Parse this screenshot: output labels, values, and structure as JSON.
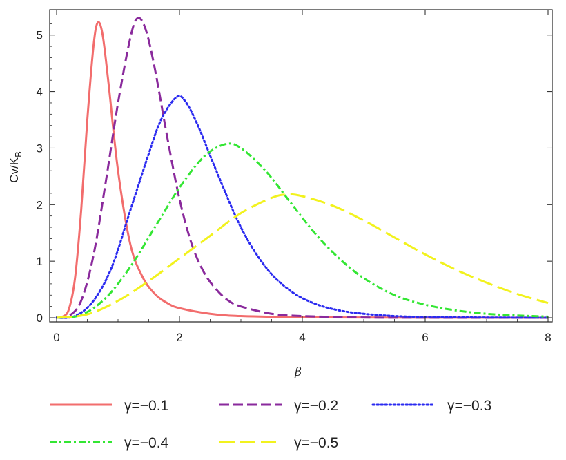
{
  "chart_data": {
    "type": "line",
    "xlabel": "β",
    "ylabel_main": "Cv/K",
    "ylabel_sub": "B",
    "xlim": [
      0,
      8
    ],
    "ylim": [
      0,
      5.4
    ],
    "x_ticks": [
      0,
      2,
      4,
      6,
      8
    ],
    "y_ticks": [
      0,
      1,
      2,
      3,
      4,
      5
    ],
    "grid": false,
    "legend_position": "bottom",
    "series": [
      {
        "name": "γ=−0.1",
        "color": "#f26d6d",
        "dash": "solid",
        "points": [
          [
            0,
            0
          ],
          [
            0.1,
            0.02
          ],
          [
            0.2,
            0.15
          ],
          [
            0.3,
            0.7
          ],
          [
            0.4,
            1.9
          ],
          [
            0.5,
            3.5
          ],
          [
            0.6,
            4.8
          ],
          [
            0.67,
            5.22
          ],
          [
            0.75,
            5.0
          ],
          [
            0.85,
            4.1
          ],
          [
            1.0,
            2.6
          ],
          [
            1.2,
            1.3
          ],
          [
            1.4,
            0.72
          ],
          [
            1.6,
            0.42
          ],
          [
            1.8,
            0.26
          ],
          [
            2.0,
            0.17
          ],
          [
            2.5,
            0.07
          ],
          [
            3.0,
            0.03
          ],
          [
            4.0,
            0.01
          ],
          [
            5.0,
            0.004
          ],
          [
            6.0,
            0.002
          ],
          [
            8.0,
            0
          ]
        ]
      },
      {
        "name": "γ=−0.2",
        "color": "#8a2a9c",
        "dash": "long",
        "points": [
          [
            0,
            0
          ],
          [
            0.2,
            0.03
          ],
          [
            0.4,
            0.3
          ],
          [
            0.6,
            1.1
          ],
          [
            0.8,
            2.4
          ],
          [
            1.0,
            3.8
          ],
          [
            1.2,
            4.95
          ],
          [
            1.32,
            5.3
          ],
          [
            1.45,
            5.1
          ],
          [
            1.6,
            4.4
          ],
          [
            1.8,
            3.2
          ],
          [
            2.0,
            2.1
          ],
          [
            2.2,
            1.3
          ],
          [
            2.4,
            0.8
          ],
          [
            2.6,
            0.5
          ],
          [
            2.8,
            0.3
          ],
          [
            3.0,
            0.2
          ],
          [
            3.5,
            0.07
          ],
          [
            4.0,
            0.03
          ],
          [
            5.0,
            0.005
          ],
          [
            6.0,
            0.001
          ],
          [
            8.0,
            0
          ]
        ]
      },
      {
        "name": "γ=−0.3",
        "color": "#2a2af0",
        "dash": "dotted",
        "points": [
          [
            0,
            0
          ],
          [
            0.3,
            0.03
          ],
          [
            0.6,
            0.3
          ],
          [
            0.9,
            0.9
          ],
          [
            1.2,
            1.9
          ],
          [
            1.5,
            2.9
          ],
          [
            1.7,
            3.5
          ],
          [
            1.95,
            3.9
          ],
          [
            2.1,
            3.82
          ],
          [
            2.3,
            3.4
          ],
          [
            2.6,
            2.6
          ],
          [
            3.0,
            1.6
          ],
          [
            3.4,
            0.9
          ],
          [
            3.8,
            0.48
          ],
          [
            4.2,
            0.25
          ],
          [
            4.6,
            0.13
          ],
          [
            5.0,
            0.07
          ],
          [
            5.5,
            0.03
          ],
          [
            6.0,
            0.015
          ],
          [
            7.0,
            0.004
          ],
          [
            8.0,
            0.001
          ]
        ]
      },
      {
        "name": "γ=−0.4",
        "color": "#33e633",
        "dash": "dashdot",
        "points": [
          [
            0,
            0
          ],
          [
            0.4,
            0.05
          ],
          [
            0.8,
            0.35
          ],
          [
            1.2,
            0.9
          ],
          [
            1.6,
            1.6
          ],
          [
            2.0,
            2.3
          ],
          [
            2.4,
            2.85
          ],
          [
            2.75,
            3.07
          ],
          [
            3.0,
            3.0
          ],
          [
            3.4,
            2.6
          ],
          [
            3.8,
            2.05
          ],
          [
            4.2,
            1.5
          ],
          [
            4.6,
            1.05
          ],
          [
            5.0,
            0.7
          ],
          [
            5.5,
            0.4
          ],
          [
            6.0,
            0.23
          ],
          [
            6.5,
            0.13
          ],
          [
            7.0,
            0.07
          ],
          [
            7.5,
            0.04
          ],
          [
            8.0,
            0.02
          ]
        ]
      },
      {
        "name": "γ=−0.5",
        "color": "#f2f21e",
        "dash": "longlong",
        "points": [
          [
            0,
            0
          ],
          [
            0.5,
            0.06
          ],
          [
            1.0,
            0.3
          ],
          [
            1.5,
            0.65
          ],
          [
            2.0,
            1.05
          ],
          [
            2.5,
            1.45
          ],
          [
            3.0,
            1.85
          ],
          [
            3.5,
            2.12
          ],
          [
            3.75,
            2.18
          ],
          [
            4.0,
            2.15
          ],
          [
            4.5,
            1.98
          ],
          [
            5.0,
            1.72
          ],
          [
            5.5,
            1.42
          ],
          [
            6.0,
            1.12
          ],
          [
            6.5,
            0.85
          ],
          [
            7.0,
            0.62
          ],
          [
            7.5,
            0.42
          ],
          [
            8.0,
            0.26
          ]
        ]
      }
    ]
  }
}
